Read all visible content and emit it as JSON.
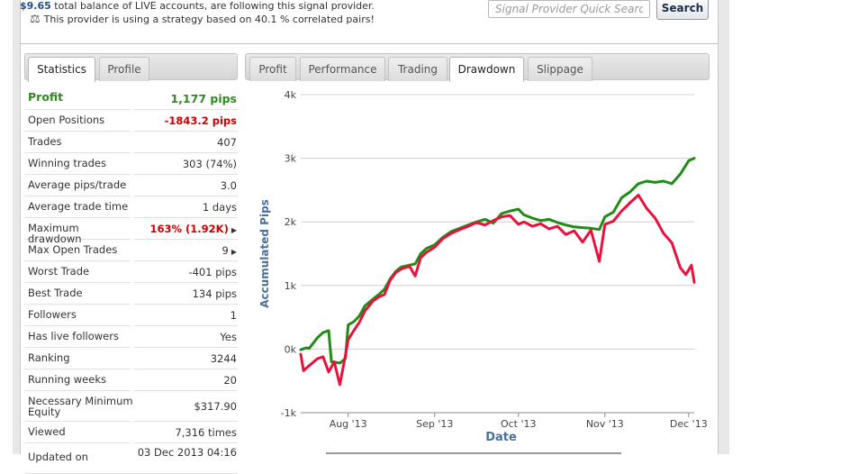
{
  "header": {
    "balance_value": "$9.65",
    "balance_text": "total balance of LIVE accounts, are following this signal provider.",
    "strategy_text": "This provider is using a strategy based on 40.1 % correlated pairs!",
    "icons": {
      "correlation": "scale-icon"
    }
  },
  "search": {
    "placeholder": "Signal Provider Quick Search",
    "button_label": "Search"
  },
  "left_tabs": [
    {
      "label": "Statistics",
      "active": true
    },
    {
      "label": "Profile",
      "active": false
    }
  ],
  "right_tabs": [
    {
      "label": "Profit",
      "active": false
    },
    {
      "label": "Performance",
      "active": false
    },
    {
      "label": "Trading",
      "active": false
    },
    {
      "label": "Drawdown",
      "active": true
    },
    {
      "label": "Slippage",
      "active": false
    }
  ],
  "stats": [
    {
      "label": "Profit",
      "value": "1,177 pips"
    },
    {
      "label": "Open Positions",
      "value": "-1843.2 pips"
    },
    {
      "label": "Trades",
      "value": "407"
    },
    {
      "label": "Winning trades",
      "value": "303 (74%)"
    },
    {
      "label": "Average pips/trade",
      "value": "3.0"
    },
    {
      "label": "Average trade time",
      "value": "1 days"
    },
    {
      "label": "Maximum drawdown",
      "value": "163% (1.92K)"
    },
    {
      "label": "Max Open Trades",
      "value": "9"
    },
    {
      "label": "Worst Trade",
      "value": "-401 pips"
    },
    {
      "label": "Best Trade",
      "value": "134 pips"
    },
    {
      "label": "Followers",
      "value": "1"
    },
    {
      "label": "Has live followers",
      "value": "Yes"
    },
    {
      "label": "Ranking",
      "value": "3244"
    },
    {
      "label": "Running weeks",
      "value": "20"
    },
    {
      "label": "Necessary Minimum Equity",
      "value": "$317.90"
    },
    {
      "label": "Viewed",
      "value": "7,316 times"
    },
    {
      "label": "Updated on",
      "value": "03 Dec 2013 04:16"
    }
  ],
  "colors": {
    "profit_green": "#2e8b1e",
    "alert_red": "#cc0000",
    "series_green": "#1f8c16",
    "series_red": "#e8123c",
    "axis_label_blue": "#4a6f9c"
  },
  "chart_data": {
    "type": "line",
    "xlabel": "Date",
    "ylabel": "Accumulated Pips",
    "ylim": [
      -1000,
      4000
    ],
    "yticks": [
      -1000,
      0,
      1000,
      2000,
      3000,
      4000
    ],
    "ytick_labels": [
      "-1k",
      "0k",
      "1k",
      "2k",
      "3k",
      "4k"
    ],
    "x_tick_labels": [
      "Aug '13",
      "Sep '13",
      "Oct '13",
      "Nov '13",
      "Dec '13"
    ],
    "x_tick_dates": [
      "2013-08-01",
      "2013-09-01",
      "2013-10-01",
      "2013-11-01",
      "2013-12-01"
    ],
    "xlim": [
      "2013-07-15",
      "2013-12-03"
    ],
    "grid": true,
    "series": [
      {
        "color": "#1f8c16",
        "points": [
          [
            "2013-07-15",
            -10
          ],
          [
            "2013-07-17",
            20
          ],
          [
            "2013-07-18",
            10
          ],
          [
            "2013-07-21",
            180
          ],
          [
            "2013-07-23",
            260
          ],
          [
            "2013-07-25",
            290
          ],
          [
            "2013-07-26",
            -200
          ],
          [
            "2013-07-29",
            -220
          ],
          [
            "2013-07-31",
            -150
          ],
          [
            "2013-08-01",
            380
          ],
          [
            "2013-08-03",
            430
          ],
          [
            "2013-08-05",
            520
          ],
          [
            "2013-08-07",
            680
          ],
          [
            "2013-08-10",
            790
          ],
          [
            "2013-08-12",
            860
          ],
          [
            "2013-08-14",
            940
          ],
          [
            "2013-08-16",
            1100
          ],
          [
            "2013-08-18",
            1220
          ],
          [
            "2013-08-20",
            1290
          ],
          [
            "2013-08-23",
            1320
          ],
          [
            "2013-08-25",
            1340
          ],
          [
            "2013-08-27",
            1500
          ],
          [
            "2013-08-29",
            1580
          ],
          [
            "2013-09-01",
            1640
          ],
          [
            "2013-09-04",
            1760
          ],
          [
            "2013-09-07",
            1850
          ],
          [
            "2013-09-10",
            1900
          ],
          [
            "2013-09-13",
            1950
          ],
          [
            "2013-09-16",
            2000
          ],
          [
            "2013-09-19",
            2040
          ],
          [
            "2013-09-22",
            1980
          ],
          [
            "2013-09-25",
            2130
          ],
          [
            "2013-09-28",
            2170
          ],
          [
            "2013-10-01",
            2200
          ],
          [
            "2013-10-03",
            2110
          ],
          [
            "2013-10-06",
            2060
          ],
          [
            "2013-10-09",
            2020
          ],
          [
            "2013-10-12",
            2040
          ],
          [
            "2013-10-15",
            1990
          ],
          [
            "2013-10-18",
            1950
          ],
          [
            "2013-10-21",
            1920
          ],
          [
            "2013-10-24",
            1910
          ],
          [
            "2013-10-27",
            1900
          ],
          [
            "2013-10-30",
            1880
          ],
          [
            "2013-11-01",
            2080
          ],
          [
            "2013-11-04",
            2150
          ],
          [
            "2013-11-07",
            2380
          ],
          [
            "2013-11-10",
            2470
          ],
          [
            "2013-11-13",
            2600
          ],
          [
            "2013-11-16",
            2640
          ],
          [
            "2013-11-19",
            2620
          ],
          [
            "2013-11-22",
            2640
          ],
          [
            "2013-11-25",
            2600
          ],
          [
            "2013-11-28",
            2750
          ],
          [
            "2013-12-01",
            2960
          ],
          [
            "2013-12-03",
            3000
          ]
        ]
      },
      {
        "color": "#e8123c",
        "points": [
          [
            "2013-07-15",
            -80
          ],
          [
            "2013-07-16",
            -340
          ],
          [
            "2013-07-18",
            -260
          ],
          [
            "2013-07-21",
            -150
          ],
          [
            "2013-07-23",
            -120
          ],
          [
            "2013-07-25",
            -360
          ],
          [
            "2013-07-27",
            -200
          ],
          [
            "2013-07-29",
            -560
          ],
          [
            "2013-07-31",
            -100
          ],
          [
            "2013-08-01",
            150
          ],
          [
            "2013-08-03",
            290
          ],
          [
            "2013-08-05",
            420
          ],
          [
            "2013-08-07",
            600
          ],
          [
            "2013-08-10",
            760
          ],
          [
            "2013-08-12",
            820
          ],
          [
            "2013-08-14",
            860
          ],
          [
            "2013-08-16",
            1080
          ],
          [
            "2013-08-18",
            1200
          ],
          [
            "2013-08-20",
            1260
          ],
          [
            "2013-08-23",
            1300
          ],
          [
            "2013-08-25",
            1150
          ],
          [
            "2013-08-27",
            1440
          ],
          [
            "2013-08-29",
            1520
          ],
          [
            "2013-09-01",
            1600
          ],
          [
            "2013-09-04",
            1740
          ],
          [
            "2013-09-07",
            1820
          ],
          [
            "2013-09-10",
            1880
          ],
          [
            "2013-09-13",
            1930
          ],
          [
            "2013-09-16",
            1990
          ],
          [
            "2013-09-19",
            1950
          ],
          [
            "2013-09-22",
            2020
          ],
          [
            "2013-09-25",
            2080
          ],
          [
            "2013-09-28",
            2100
          ],
          [
            "2013-10-01",
            1960
          ],
          [
            "2013-10-03",
            2000
          ],
          [
            "2013-10-06",
            1930
          ],
          [
            "2013-10-09",
            1970
          ],
          [
            "2013-10-12",
            1890
          ],
          [
            "2013-10-15",
            1930
          ],
          [
            "2013-10-18",
            1800
          ],
          [
            "2013-10-21",
            1860
          ],
          [
            "2013-10-24",
            1680
          ],
          [
            "2013-10-27",
            1870
          ],
          [
            "2013-10-30",
            1380
          ],
          [
            "2013-11-01",
            1960
          ],
          [
            "2013-11-04",
            2010
          ],
          [
            "2013-11-07",
            2170
          ],
          [
            "2013-11-10",
            2300
          ],
          [
            "2013-11-13",
            2420
          ],
          [
            "2013-11-16",
            2210
          ],
          [
            "2013-11-19",
            2060
          ],
          [
            "2013-11-22",
            1820
          ],
          [
            "2013-11-25",
            1670
          ],
          [
            "2013-11-28",
            1280
          ],
          [
            "2013-11-30",
            1170
          ],
          [
            "2013-12-02",
            1320
          ],
          [
            "2013-12-03",
            1050
          ]
        ]
      }
    ]
  }
}
